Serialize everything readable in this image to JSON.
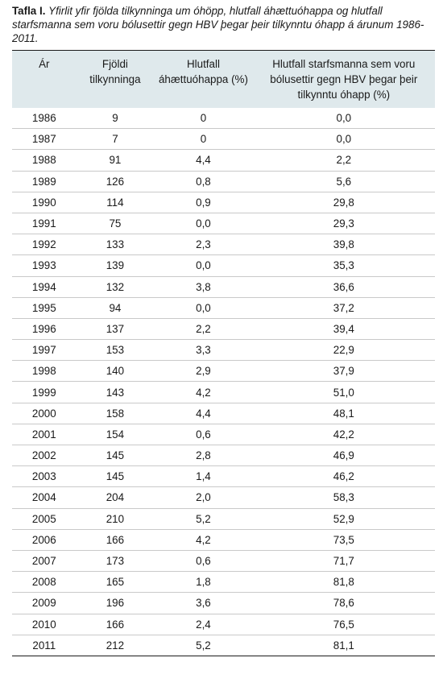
{
  "caption": {
    "label": "Tafla I.",
    "text": "Yfirlit yfir fjölda tilkynninga um óhöpp, hlutfall áhættuóhappa og hlutfall starfsmanna sem voru bólusettir gegn HBV þegar þeir tilkynntu óhapp á árunum 1986-2011."
  },
  "table": {
    "headers": [
      "Ár",
      "Fjöldi tilkynninga",
      "Hlutfall áhættuóhappa (%)",
      "Hlutfall starfsmanna sem voru bólusettir gegn HBV þegar þeir tilkynntu óhapp (%)"
    ],
    "rows": [
      [
        "1986",
        "9",
        "0",
        "0,0"
      ],
      [
        "1987",
        "7",
        "0",
        "0,0"
      ],
      [
        "1988",
        "91",
        "4,4",
        "2,2"
      ],
      [
        "1989",
        "126",
        "0,8",
        "5,6"
      ],
      [
        "1990",
        "114",
        "0,9",
        "29,8"
      ],
      [
        "1991",
        "75",
        "0,0",
        "29,3"
      ],
      [
        "1992",
        "133",
        "2,3",
        "39,8"
      ],
      [
        "1993",
        "139",
        "0,0",
        "35,3"
      ],
      [
        "1994",
        "132",
        "3,8",
        "36,6"
      ],
      [
        "1995",
        "94",
        "0,0",
        "37,2"
      ],
      [
        "1996",
        "137",
        "2,2",
        "39,4"
      ],
      [
        "1997",
        "153",
        "3,3",
        "22,9"
      ],
      [
        "1998",
        "140",
        "2,9",
        "37,9"
      ],
      [
        "1999",
        "143",
        "4,2",
        "51,0"
      ],
      [
        "2000",
        "158",
        "4,4",
        "48,1"
      ],
      [
        "2001",
        "154",
        "0,6",
        "42,2"
      ],
      [
        "2002",
        "145",
        "2,8",
        "46,9"
      ],
      [
        "2003",
        "145",
        "1,4",
        "46,2"
      ],
      [
        "2004",
        "204",
        "2,0",
        "58,3"
      ],
      [
        "2005",
        "210",
        "5,2",
        "52,9"
      ],
      [
        "2006",
        "166",
        "4,2",
        "73,5"
      ],
      [
        "2007",
        "173",
        "0,6",
        "71,7"
      ],
      [
        "2008",
        "165",
        "1,8",
        "81,8"
      ],
      [
        "2009",
        "196",
        "3,6",
        "78,6"
      ],
      [
        "2010",
        "166",
        "2,4",
        "76,5"
      ],
      [
        "2011",
        "212",
        "5,2",
        "81,1"
      ]
    ]
  }
}
